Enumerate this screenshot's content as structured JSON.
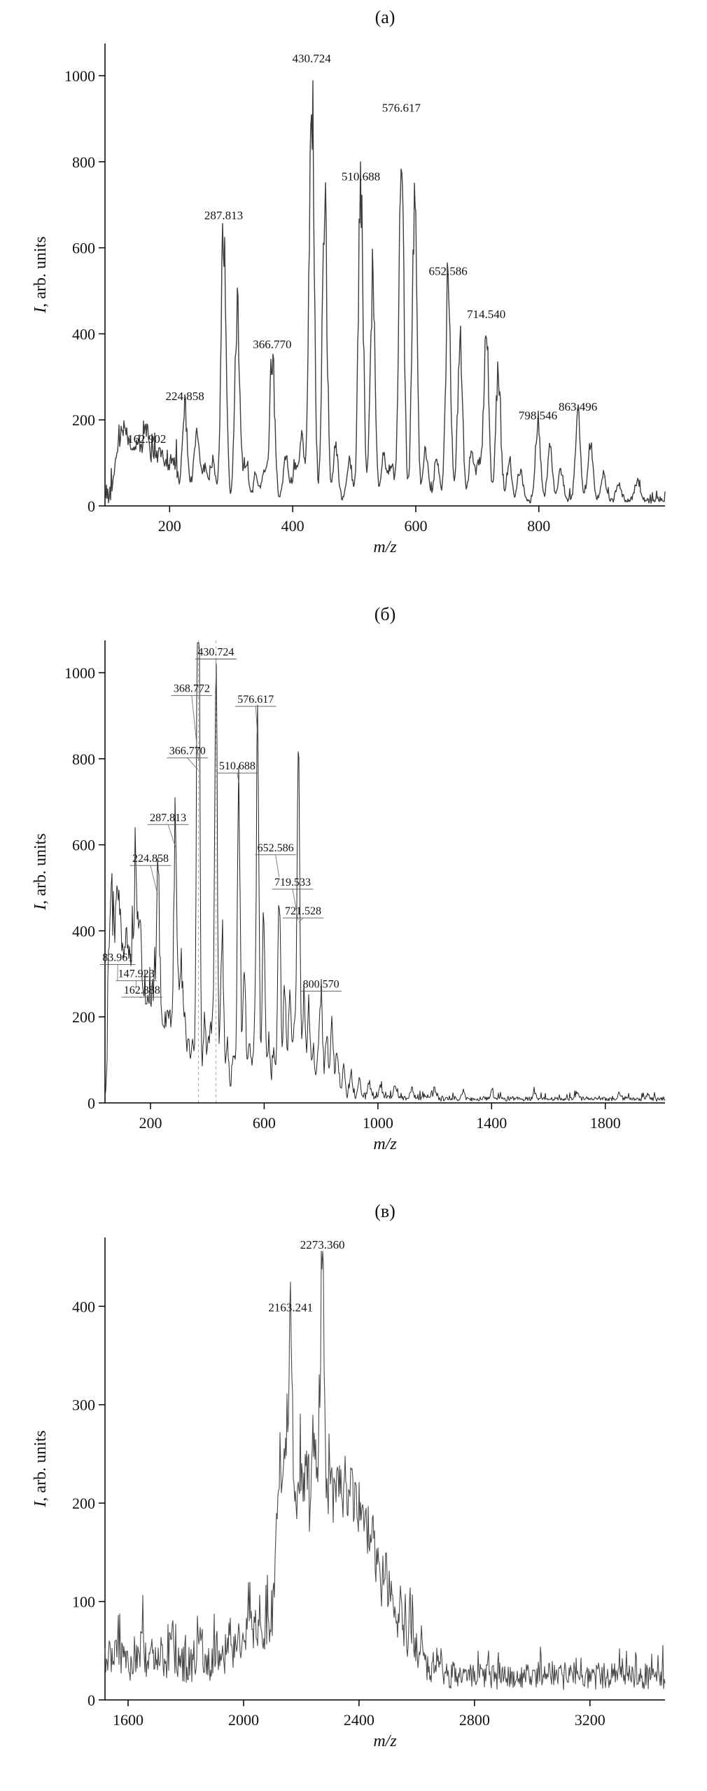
{
  "page": {
    "background": "#ffffff",
    "text_color": "#111111"
  },
  "chart_data": [
    {
      "type": "line",
      "title": "(а)",
      "xlabel": "m/z",
      "ylabel": "I, arb. units",
      "ylabel_italic": "I",
      "ylabel_rest": ", arb. units",
      "xlim": [
        95,
        1005
      ],
      "ylim": [
        0,
        1075
      ],
      "xticks": [
        200,
        400,
        600,
        800
      ],
      "yticks": [
        0,
        200,
        400,
        600,
        800,
        1000
      ],
      "grid": false,
      "legend": null,
      "label_style": "above",
      "label_size": 17,
      "peak_sigma": 4,
      "stroke": "#3d3d3d",
      "stroke_width": 1.4,
      "seed": 101,
      "guides": [],
      "humps": [],
      "noise_zones": [
        {
          "from": 95,
          "to": 215,
          "base": 14,
          "amp": 70,
          "p": 0.22
        },
        {
          "from": 215,
          "to": 1005,
          "base": 13,
          "amp": 22,
          "p": 0.12
        }
      ],
      "peaks": [
        {
          "mz": 162.902,
          "i": 130,
          "label": "162.902"
        },
        {
          "mz": 224.858,
          "i": 230,
          "label": "224.858"
        },
        {
          "mz": 287.813,
          "i": 650,
          "label": "287.813"
        },
        {
          "mz": 366.77,
          "i": 350,
          "label": "366.770"
        },
        {
          "mz": 430.724,
          "i": 1015,
          "label": "430.724"
        },
        {
          "mz": 510.688,
          "i": 740,
          "label": "510.688"
        },
        {
          "mz": 576.617,
          "i": 900,
          "label": "576.617"
        },
        {
          "mz": 652.586,
          "i": 520,
          "label": "652.586"
        },
        {
          "mz": 714.54,
          "i": 420,
          "label": "714.540"
        },
        {
          "mz": 798.546,
          "i": 185,
          "label": "798.546"
        },
        {
          "mz": 863.496,
          "i": 205,
          "label": "863.496"
        }
      ],
      "minor_peaks": [
        [
          112,
          60
        ],
        [
          118,
          85
        ],
        [
          124,
          100
        ],
        [
          131,
          120
        ],
        [
          138,
          80
        ],
        [
          146,
          105
        ],
        [
          152,
          70
        ],
        [
          158,
          60
        ],
        [
          170,
          55
        ],
        [
          177,
          75
        ],
        [
          185,
          90
        ],
        [
          193,
          65
        ],
        [
          203,
          80
        ],
        [
          211,
          55
        ],
        [
          240,
          60
        ],
        [
          246,
          130
        ],
        [
          258,
          75
        ],
        [
          270,
          95
        ],
        [
          310,
          470
        ],
        [
          324,
          90
        ],
        [
          340,
          60
        ],
        [
          354,
          70
        ],
        [
          389,
          110
        ],
        [
          404,
          80
        ],
        [
          415,
          150
        ],
        [
          452,
          700
        ],
        [
          470,
          120
        ],
        [
          492,
          100
        ],
        [
          530,
          520
        ],
        [
          548,
          110
        ],
        [
          560,
          90
        ],
        [
          598,
          690
        ],
        [
          616,
          120
        ],
        [
          634,
          100
        ],
        [
          672,
          370
        ],
        [
          690,
          110
        ],
        [
          702,
          100
        ],
        [
          734,
          300
        ],
        [
          752,
          90
        ],
        [
          770,
          70
        ],
        [
          818,
          125
        ],
        [
          836,
          70
        ],
        [
          884,
          145
        ],
        [
          905,
          60
        ],
        [
          930,
          40
        ],
        [
          960,
          45
        ]
      ]
    },
    {
      "type": "line",
      "title": "(б)",
      "xlabel": "m/z",
      "ylabel": "I, arb. units",
      "ylabel_italic": "I",
      "ylabel_rest": ", arb. units",
      "xlim": [
        40,
        2010
      ],
      "ylim": [
        0,
        1075
      ],
      "xticks": [
        200,
        600,
        1000,
        1400,
        1800
      ],
      "yticks": [
        0,
        200,
        400,
        600,
        800,
        1000
      ],
      "grid": false,
      "legend": null,
      "label_style": "underline",
      "label_size": 16,
      "peak_sigma": 5,
      "stroke": "#222222",
      "stroke_width": 1.0,
      "seed": 202,
      "guides": [
        368.772,
        430.724
      ],
      "humps": [],
      "noise_zones": [
        {
          "from": 40,
          "to": 230,
          "base": 18,
          "amp": 120,
          "p": 0.3
        },
        {
          "from": 230,
          "to": 870,
          "base": 16,
          "amp": 40,
          "p": 0.15
        },
        {
          "from": 870,
          "to": 1200,
          "base": 12,
          "amp": 22,
          "p": 0.12
        },
        {
          "from": 1200,
          "to": 2010,
          "base": 10,
          "amp": 14,
          "p": 0.1
        }
      ],
      "peaks": [
        {
          "mz": 83.961,
          "i": 280,
          "label": "83.961",
          "lx": 85,
          "ly": 330
        },
        {
          "mz": 147.923,
          "i": 260,
          "label": "147.923",
          "lx": 150,
          "ly": 292
        },
        {
          "mz": 162.888,
          "i": 240,
          "label": "162.888",
          "lx": 170,
          "ly": 254
        },
        {
          "mz": 224.858,
          "i": 480,
          "label": "224.858",
          "lx": 200,
          "ly": 560
        },
        {
          "mz": 287.813,
          "i": 590,
          "label": "287.813",
          "lx": 262,
          "ly": 655
        },
        {
          "mz": 366.77,
          "i": 770,
          "label": "366.770",
          "lx": 330,
          "ly": 810
        },
        {
          "mz": 368.772,
          "i": 790,
          "label": "368.772",
          "lx": 345,
          "ly": 955
        },
        {
          "mz": 430.724,
          "i": 960,
          "label": "430.724",
          "lx": 430,
          "ly": 1040
        },
        {
          "mz": 510.688,
          "i": 740,
          "label": "510.688",
          "lx": 505,
          "ly": 775
        },
        {
          "mz": 576.617,
          "i": 850,
          "label": "576.617",
          "lx": 570,
          "ly": 930
        },
        {
          "mz": 652.586,
          "i": 520,
          "label": "652.586",
          "lx": 640,
          "ly": 585
        },
        {
          "mz": 719.533,
          "i": 420,
          "label": "719.533",
          "lx": 700,
          "ly": 505
        },
        {
          "mz": 721.528,
          "i": 415,
          "label": "721.528",
          "lx": 737,
          "ly": 438
        },
        {
          "mz": 800.57,
          "i": 230,
          "label": "800.570",
          "lx": 800,
          "ly": 268
        }
      ],
      "minor_peaks": [
        [
          55,
          190
        ],
        [
          60,
          240
        ],
        [
          66,
          170
        ],
        [
          72,
          210
        ],
        [
          78,
          150
        ],
        [
          90,
          230
        ],
        [
          96,
          190
        ],
        [
          103,
          165
        ],
        [
          109,
          200
        ],
        [
          116,
          150
        ],
        [
          122,
          185
        ],
        [
          129,
          145
        ],
        [
          135,
          165
        ],
        [
          142,
          195
        ],
        [
          150,
          160
        ],
        [
          157,
          150
        ],
        [
          168,
          135
        ],
        [
          176,
          155
        ],
        [
          184,
          125
        ],
        [
          192,
          145
        ],
        [
          200,
          115
        ],
        [
          207,
          135
        ],
        [
          215,
          105
        ],
        [
          232,
          170
        ],
        [
          241,
          145
        ],
        [
          252,
          125
        ],
        [
          262,
          155
        ],
        [
          272,
          135
        ],
        [
          282,
          120
        ],
        [
          300,
          190
        ],
        [
          310,
          280
        ],
        [
          322,
          140
        ],
        [
          334,
          120
        ],
        [
          348,
          130
        ],
        [
          390,
          170
        ],
        [
          404,
          120
        ],
        [
          416,
          150
        ],
        [
          452,
          390
        ],
        [
          470,
          130
        ],
        [
          492,
          110
        ],
        [
          530,
          310
        ],
        [
          548,
          120
        ],
        [
          562,
          100
        ],
        [
          598,
          430
        ],
        [
          616,
          130
        ],
        [
          634,
          110
        ],
        [
          672,
          280
        ],
        [
          690,
          240
        ],
        [
          706,
          180
        ],
        [
          740,
          250
        ],
        [
          756,
          190
        ],
        [
          772,
          120
        ],
        [
          790,
          100
        ],
        [
          820,
          140
        ],
        [
          838,
          170
        ],
        [
          856,
          110
        ],
        [
          880,
          70
        ],
        [
          905,
          55
        ],
        [
          935,
          45
        ],
        [
          970,
          40
        ],
        [
          1010,
          32
        ],
        [
          1060,
          28
        ],
        [
          1120,
          24
        ],
        [
          1200,
          22
        ],
        [
          1300,
          20
        ],
        [
          1400,
          18
        ],
        [
          1550,
          16
        ],
        [
          1700,
          15
        ],
        [
          1850,
          14
        ],
        [
          1950,
          13
        ]
      ]
    },
    {
      "type": "line",
      "title": "(в)",
      "xlabel": "m/z",
      "ylabel": "I, arb. units",
      "ylabel_italic": "I",
      "ylabel_rest": ", arb. units",
      "xlim": [
        1520,
        3460
      ],
      "ylim": [
        0,
        470
      ],
      "xticks": [
        1600,
        2000,
        2400,
        2800,
        3200
      ],
      "yticks": [
        0,
        100,
        200,
        300,
        400
      ],
      "grid": false,
      "legend": null,
      "label_style": "above",
      "label_size": 17,
      "peak_sigma": 7,
      "stroke": "#4a4a4a",
      "stroke_width": 1.1,
      "seed": 303,
      "guides": [],
      "humps": [
        {
          "c": 2350,
          "s": 115,
          "a": 100
        },
        {
          "c": 2210,
          "s": 45,
          "a": 45
        },
        {
          "c": 2060,
          "s": 60,
          "a": 25
        }
      ],
      "noise_zones": [
        {
          "from": 1520,
          "to": 2080,
          "base": 42,
          "amp": 38,
          "p": 0.18
        },
        {
          "from": 2080,
          "to": 2600,
          "base": 42,
          "amp": 48,
          "p": 0.2
        },
        {
          "from": 2600,
          "to": 3460,
          "base": 28,
          "amp": 22,
          "p": 0.15
        }
      ],
      "peaks": [
        {
          "mz": 2163.241,
          "i": 300,
          "label": "2163.241",
          "ly": 395
        },
        {
          "mz": 2273.36,
          "i": 340,
          "label": "2273.360",
          "ly": 462
        }
      ],
      "minor_peaks": [
        [
          1560,
          25
        ],
        [
          1650,
          20
        ],
        [
          1750,
          22
        ],
        [
          1850,
          25
        ],
        [
          1950,
          28
        ],
        [
          2020,
          35
        ],
        [
          2115,
          110
        ],
        [
          2130,
          140
        ],
        [
          2146,
          160
        ],
        [
          2185,
          80
        ],
        [
          2200,
          100
        ],
        [
          2218,
          85
        ],
        [
          2240,
          110
        ],
        [
          2255,
          90
        ],
        [
          2300,
          90
        ],
        [
          2318,
          75
        ],
        [
          2335,
          85
        ],
        [
          2352,
          70
        ],
        [
          2370,
          75
        ],
        [
          2388,
          60
        ],
        [
          2405,
          65
        ],
        [
          2425,
          55
        ],
        [
          2445,
          60
        ],
        [
          2465,
          45
        ],
        [
          2490,
          40
        ],
        [
          2515,
          40
        ],
        [
          2545,
          35
        ],
        [
          2580,
          30
        ],
        [
          2620,
          25
        ],
        [
          2680,
          20
        ]
      ]
    }
  ]
}
